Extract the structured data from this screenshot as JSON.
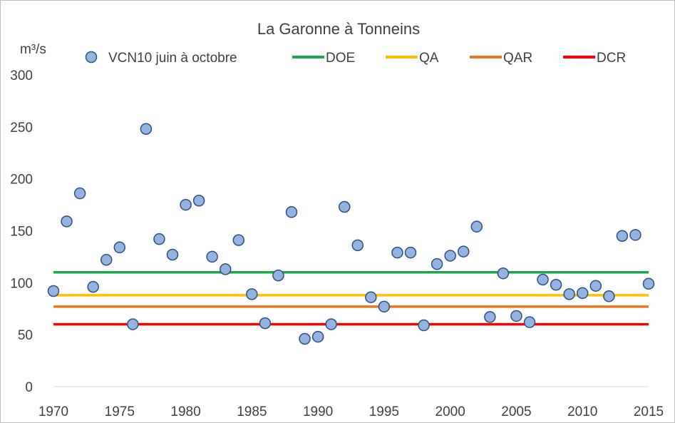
{
  "chart_data": {
    "type": "scatter",
    "title": "La Garonne à Tonneins",
    "ylabel": "m³/s",
    "xlabel": "",
    "xlim": [
      1970,
      2015
    ],
    "ylim": [
      0,
      300
    ],
    "x_ticks": [
      1970,
      1975,
      1980,
      1985,
      1990,
      1995,
      2000,
      2005,
      2010,
      2015
    ],
    "y_ticks": [
      0,
      50,
      100,
      150,
      200,
      250,
      300
    ],
    "grid": false,
    "legend_position": "top",
    "scatter_series": {
      "name": "VCN10 juin à octobre",
      "color": "#95b3e0",
      "edge_color": "#2f4f7f",
      "x": [
        1970,
        1971,
        1972,
        1973,
        1974,
        1975,
        1976,
        1977,
        1978,
        1979,
        1980,
        1981,
        1982,
        1983,
        1984,
        1985,
        1986,
        1987,
        1988,
        1989,
        1990,
        1991,
        1992,
        1993,
        1994,
        1995,
        1996,
        1997,
        1998,
        1999,
        2000,
        2001,
        2002,
        2003,
        2004,
        2005,
        2006,
        2007,
        2008,
        2009,
        2010,
        2011,
        2012,
        2013,
        2014,
        2015
      ],
      "y": [
        92,
        159,
        186,
        96,
        122,
        134,
        60,
        248,
        142,
        127,
        175,
        179,
        125,
        113,
        141,
        89,
        61,
        107,
        168,
        46,
        48,
        60,
        173,
        136,
        86,
        77,
        129,
        129,
        59,
        118,
        126,
        130,
        154,
        67,
        109,
        68,
        62,
        103,
        98,
        89,
        90,
        97,
        87,
        145,
        146,
        99
      ]
    },
    "reference_lines": [
      {
        "name": "DOE",
        "value": 110,
        "color": "#1ea74a"
      },
      {
        "name": "QA",
        "value": 88,
        "color": "#ffc000"
      },
      {
        "name": "QAR",
        "value": 77,
        "color": "#e87722"
      },
      {
        "name": "DCR",
        "value": 60,
        "color": "#ff0000"
      }
    ]
  }
}
